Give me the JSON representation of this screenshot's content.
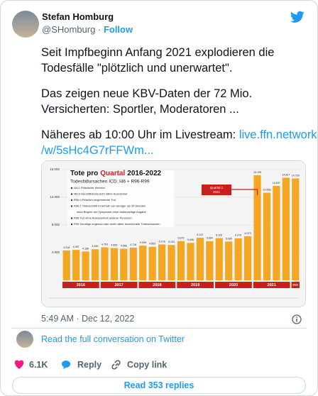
{
  "tweet": {
    "name": "Stefan Homburg",
    "handle": "@SHomburg",
    "separator": "·",
    "follow": "Follow",
    "lines": [
      "Seit Impfbeginn Anfang 2021 explodieren die",
      "Todesfälle \"plötzlich und unerwartet\".",
      "Das zeigen neue KBV-Daten der 72 Mio.",
      "Versicherten: Sportler, Moderatoren ..."
    ],
    "link_intro": "Näheres ab 10:00 Uhr im Livestream:",
    "link": [
      "live.ffn.network",
      "/w/5sHc4G7rFFWm..."
    ],
    "timestamp": "5:49 AM · Dec 12, 2022",
    "read_conversation": "Read the full conversation on Twitter",
    "likes": "6.1K",
    "reply": "Reply",
    "copy_link": "Copy link",
    "read_replies": "Read 353 replies"
  },
  "media": {
    "chart": {
      "type": "bar",
      "title": [
        "Tote pro",
        "Quartal",
        "2016-2022"
      ],
      "subtitle": "Todesfallursachen ICD: I46 + R96-R99",
      "legend": [
        "I46.1 Plötzlicher Herztod",
        "I46.9 Herzstillstand,nicht näher bezeichnet",
        "R96.0 Plötzlich eingetretener Tod",
        "R96.1 Todeseintritt innerhalb von weniger als 24 Stunden",
        "nach Beginn der Symptome,ohne anderweitige Angabe",
        "R98 Tod ohne Anwesenheit anderer Personen",
        "R99 Sonstige ungenau oder nicht näher bezeichnete Todesursachen"
      ],
      "annotation": [
        "Quartal 1",
        "2021"
      ],
      "color": "#f5a623",
      "years": [
        "2016",
        "2017",
        "2018",
        "2019",
        "2020",
        "2021",
        "2022"
      ],
      "values": [
        4318,
        4397,
        4166,
        4490,
        4763,
        4650,
        4566,
        4716,
        5009,
        4853,
        5178,
        5104,
        5673,
        5406,
        6147,
        5664,
        6102,
        5596,
        6076,
        6373,
        15199,
        12659,
        13637,
        14827,
        14720
      ],
      "value_labels": [
        "4.318",
        "4.397",
        "4.166",
        "4.490",
        "4.763",
        "4.650",
        "4.566",
        "4.716",
        "5.009",
        "4.853",
        "5.178",
        "5.104",
        "5.673",
        "5.406",
        "6.147",
        "5.664",
        "6.102",
        "5.596",
        "6.076",
        "6.373",
        "15.199",
        "12.659",
        "13.637",
        "14.827",
        "14.720"
      ],
      "ylim": [
        0,
        16000
      ],
      "yticks": [
        {
          "value": 4000,
          "label": "4.000"
        },
        {
          "value": 8000,
          "label": "8.000"
        },
        {
          "value": 12000,
          "label": "12.000"
        },
        {
          "value": 16000,
          "label": "16.000"
        }
      ]
    }
  }
}
